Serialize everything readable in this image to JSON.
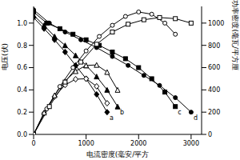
{
  "chart_data": {
    "type": "line",
    "x_label": "电流密度(毫安/平方",
    "y_label": "电压(伏)",
    "y2_label": "功率密度(毫瓦/平方厘",
    "xlim": [
      0,
      3200
    ],
    "xticks": [
      0,
      1000,
      2000,
      3000
    ],
    "ylim": [
      0,
      1.15
    ],
    "yticks": [
      {
        "value": 0,
        "label": "0.0"
      },
      0.2,
      0.4,
      0.6,
      0.8,
      {
        "value": 1,
        "label": "1.0"
      }
    ],
    "y2lim": [
      0,
      1150
    ],
    "y2ticks": [
      0,
      200,
      400,
      600,
      800,
      1000
    ],
    "series": [
      {
        "name": "a",
        "color": "#000000",
        "marker": "diamond",
        "x": [
          0,
          200,
          400,
          600,
          800,
          1000,
          1200,
          1400
        ],
        "values": [
          1.05,
          0.95,
          0.85,
          0.74,
          0.62,
          0.5,
          0.36,
          0.2
        ]
      },
      {
        "name": "b",
        "color": "#000000",
        "marker": "triangle",
        "x": [
          0,
          200,
          400,
          600,
          800,
          1000,
          1200,
          1400,
          1600
        ],
        "values": [
          1.07,
          0.98,
          0.88,
          0.8,
          0.71,
          0.62,
          0.52,
          0.4,
          0.25
        ]
      },
      {
        "name": "c",
        "color": "#000000",
        "marker": "square",
        "x": [
          0,
          250,
          500,
          750,
          1000,
          1250,
          1500,
          1750,
          2000,
          2250,
          2500,
          2700
        ],
        "values": [
          1.1,
          1.0,
          0.95,
          0.9,
          0.85,
          0.8,
          0.74,
          0.68,
          0.6,
          0.5,
          0.38,
          0.25
        ]
      },
      {
        "name": "d",
        "color": "#000000",
        "marker": "circle",
        "x": [
          0,
          300,
          600,
          900,
          1200,
          1500,
          1800,
          2100,
          2400,
          2700,
          3000
        ],
        "values": [
          1.12,
          1.0,
          0.92,
          0.85,
          0.78,
          0.7,
          0.62,
          0.53,
          0.44,
          0.33,
          0.2
        ]
      },
      {
        "name": "a",
        "color": "#000000",
        "marker": "diamond",
        "axis": "y2",
        "x": [
          0,
          200,
          400,
          600,
          800,
          1000,
          1200,
          1400
        ],
        "values": [
          0,
          190,
          340,
          444,
          496,
          500,
          432,
          280
        ]
      },
      {
        "name": "b",
        "color": "#000000",
        "marker": "triangle",
        "axis": "y2",
        "x": [
          0,
          200,
          400,
          600,
          800,
          1000,
          1200,
          1400,
          1600
        ],
        "values": [
          0,
          196,
          352,
          480,
          568,
          620,
          624,
          560,
          400
        ]
      },
      {
        "name": "c",
        "color": "#000000",
        "marker": "circle",
        "axis": "y2",
        "x": [
          0,
          250,
          500,
          750,
          1000,
          1250,
          1500,
          1750,
          2000,
          2250,
          2500,
          2700
        ],
        "values": [
          0,
          230,
          430,
          600,
          750,
          880,
          980,
          1060,
          1100,
          1080,
          1000,
          900
        ]
      },
      {
        "name": "d",
        "color": "#000000",
        "marker": "square",
        "axis": "y2",
        "x": [
          0,
          300,
          600,
          900,
          1200,
          1500,
          1800,
          2100,
          2400,
          2700,
          3000
        ],
        "values": [
          0,
          250,
          470,
          650,
          810,
          920,
          990,
          1030,
          1050,
          1040,
          1000
        ]
      }
    ]
  }
}
